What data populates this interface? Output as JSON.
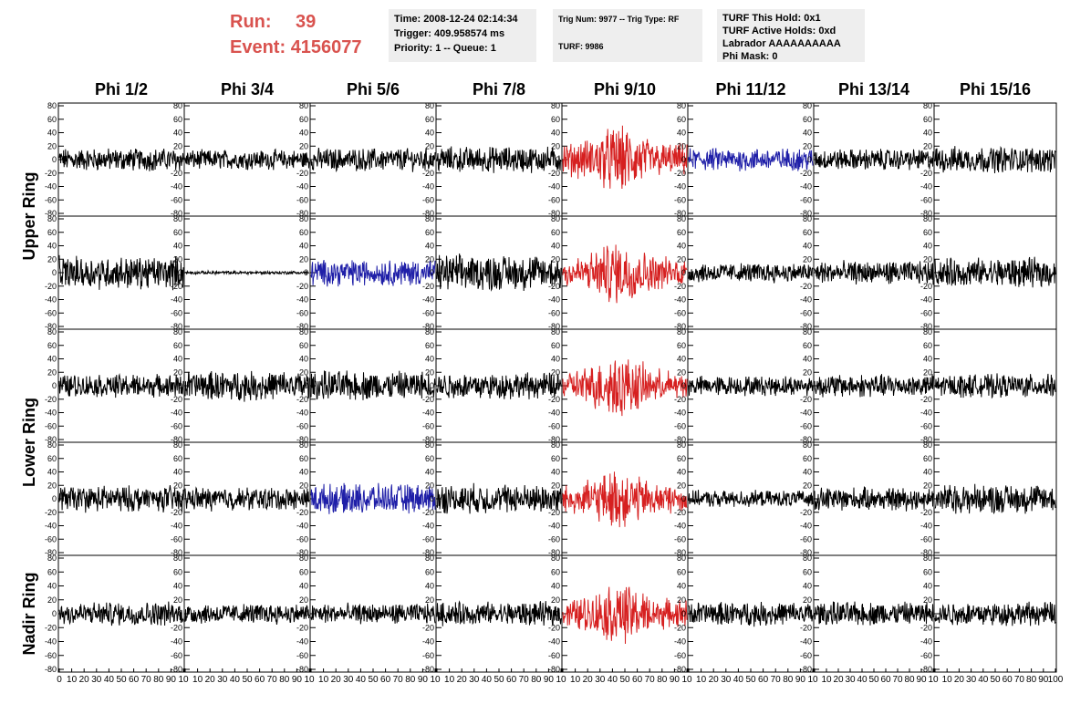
{
  "header": {
    "run_label": "Run:",
    "run_value": "39",
    "event_label": "Event:",
    "event_value": "4156077"
  },
  "info": {
    "time": "Time: 2008-12-24 02:14:34",
    "trigger": "Trigger: 409.958574 ms",
    "priority": "Priority: 1 -- Queue: 1",
    "trig_num": "Trig Num: 9977 -- Trig Type: RF",
    "turf": "TURF: 9986",
    "turf_this_hold": "TURF This Hold: 0x1",
    "turf_active_holds": "TURF Active Holds: 0xd",
    "labrador": "Labrador AAAAAAAAAA",
    "phi_mask": "Phi Mask: 0"
  },
  "colors": {
    "header_red": "#d9534f",
    "trace_default": "#000000",
    "trace_triggered": "#d62020",
    "trace_highlight": "#1f1fa8",
    "info_bg": "#eeeeee"
  },
  "chart_data": {
    "type": "line",
    "columns": [
      "Phi 1/2",
      "Phi 3/4",
      "Phi 5/6",
      "Phi 7/8",
      "Phi 9/10",
      "Phi 11/12",
      "Phi 13/14",
      "Phi 15/16"
    ],
    "rows": [
      "Upper Ring",
      "",
      "Lower Ring",
      "",
      "Nadir Ring"
    ],
    "ylim": [
      -80,
      80
    ],
    "yticks": [
      -80,
      -60,
      -40,
      -20,
      0,
      20,
      40,
      60,
      80
    ],
    "xlim": [
      0,
      100
    ],
    "xticks": [
      0,
      10,
      20,
      30,
      40,
      50,
      60,
      70,
      80,
      90,
      100
    ],
    "xtick_labels_first": [
      "0",
      "10",
      "20",
      "30",
      "40",
      "50",
      "60",
      "70",
      "80",
      "90",
      "10"
    ],
    "xtick_labels_mid": [
      "10",
      "20",
      "30",
      "40",
      "50",
      "60",
      "70",
      "80",
      "90",
      "10"
    ],
    "xtick_labels_last": [
      "10",
      "20",
      "30",
      "40",
      "50",
      "60",
      "70",
      "80",
      "90",
      "100"
    ],
    "panel_colors": [
      [
        "black",
        "black",
        "black",
        "black",
        "red",
        "blue",
        "black",
        "black"
      ],
      [
        "black",
        "black",
        "blue",
        "black",
        "red",
        "black",
        "black",
        "black"
      ],
      [
        "black",
        "black",
        "black",
        "black",
        "red",
        "black",
        "black",
        "black"
      ],
      [
        "black",
        "black",
        "blue",
        "black",
        "red",
        "black",
        "black",
        "black"
      ],
      [
        "black",
        "black",
        "black",
        "black",
        "red",
        "black",
        "black",
        "black"
      ]
    ],
    "panel_amplitude": [
      [
        14,
        12,
        14,
        16,
        30,
        14,
        13,
        16
      ],
      [
        20,
        2,
        16,
        22,
        28,
        12,
        14,
        18
      ],
      [
        14,
        18,
        18,
        16,
        28,
        12,
        14,
        14
      ],
      [
        16,
        14,
        18,
        18,
        26,
        10,
        14,
        18
      ],
      [
        14,
        12,
        12,
        14,
        26,
        14,
        14,
        14
      ]
    ]
  }
}
